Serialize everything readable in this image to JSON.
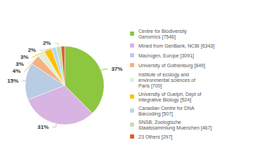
{
  "chart_data": {
    "type": "pie",
    "categories": [
      "Centre for Biodiversity\nGenomics [7546]",
      "Mined from GenBank, NCBI [6343]",
      "Macrogen, Europe [3091]",
      "University of Gothenburg [849]",
      "Institute of ecology and\nenvironmental sciences of\nParis [700]",
      "University of Guelph, Dept of\nIntegrative Biology [524]",
      "Canadian Centre for DNA\nBarcoding [507]",
      "SNSB, Zoologische\nStaatssammlung Muenchen [467]",
      "23 Others [297]"
    ],
    "values": [
      37,
      31,
      15,
      4,
      3,
      3,
      2,
      2,
      1.46
    ],
    "value_labels": [
      "37%",
      "31%",
      "15%",
      "4%",
      "3%",
      "3%",
      "2%",
      "2%",
      null
    ],
    "colors": [
      "#8dc63f",
      "#d8b4e2",
      "#b8cce4",
      "#f4b183",
      "#e2efda",
      "#ffc000",
      "#bdd7ee",
      "#c6e0b4",
      "#e05c2a"
    ],
    "data_labels": true,
    "legend": "right"
  }
}
